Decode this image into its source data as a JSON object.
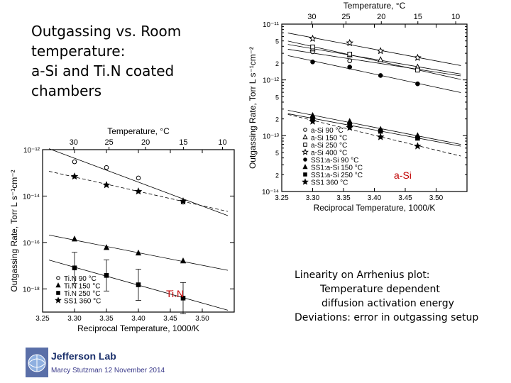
{
  "slide": {
    "title_lines": [
      "Outgassing vs. Room",
      "temperature:",
      "a-Si and Ti.N coated",
      "chambers"
    ],
    "notes": {
      "line1": "Linearity on Arrhenius plot:",
      "line2": "Temperature dependent",
      "line3": "diffusion  activation energy",
      "line4": "Deviations: error in outgassing setup"
    },
    "footer": {
      "brand": "Jefferson Lab",
      "author": "Marcy Stutzman 12 November 2014"
    }
  },
  "chart_data": [
    {
      "type": "scatter",
      "panel_label": "a-Si",
      "xlabel": "Reciprocal Temperature, 1000/K",
      "ylabel": "Outgassing Rate, Torr L s⁻¹cm⁻²",
      "top_axis_label": "Temperature, °C",
      "yscale": "log",
      "xlim": [
        3.25,
        3.55
      ],
      "ylim": [
        1e-14,
        1e-11
      ],
      "x_ticks": [
        "3.25",
        "3.30",
        "3.35",
        "3.40",
        "3.45",
        "3.50"
      ],
      "top_ticks": [
        "35",
        "30",
        "25",
        "20",
        "15",
        "10"
      ],
      "y_ticks": [
        "10⁻¹¹",
        "10⁻¹²",
        "10⁻¹³",
        "10⁻¹⁴"
      ],
      "y_minor_labels": [
        "5",
        "2",
        "5",
        "2",
        "5",
        "2"
      ],
      "legend": [
        "a-Si  90 °C",
        "a-Si 150 °C",
        "a-Si 250 °C",
        "a-Si 400 °C",
        "SS1:a-Si  90 °C",
        "SS1:a-Si 150 °C",
        "SS1:a-Si 250 °C",
        "SS1 360 °C"
      ],
      "series": [
        {
          "name": "a-Si  90 °C",
          "marker": "circle-open",
          "x": [
            3.3,
            3.36,
            3.47
          ],
          "y": [
            3.2e-12,
            2.2e-12,
            1.6e-12
          ]
        },
        {
          "name": "a-Si 150 °C",
          "marker": "triangle-open",
          "x": [
            3.3,
            3.36,
            3.41,
            3.47
          ],
          "y": [
            3.6e-12,
            2.8e-12,
            2.3e-12,
            1.7e-12
          ]
        },
        {
          "name": "a-Si 250 °C",
          "marker": "square-open",
          "x": [
            3.3,
            3.36,
            3.47
          ],
          "y": [
            3.9e-12,
            2.9e-12,
            1.5e-12
          ]
        },
        {
          "name": "a-Si 400 °C",
          "marker": "star-open",
          "x": [
            3.3,
            3.36,
            3.41,
            3.47
          ],
          "y": [
            5.5e-12,
            4.6e-12,
            3.3e-12,
            2.5e-12
          ]
        },
        {
          "name": "SS1:a-Si  90 °C",
          "marker": "circle",
          "x": [
            3.3,
            3.36,
            3.41,
            3.47
          ],
          "y": [
            2.1e-12,
            1.7e-12,
            1.2e-12,
            8.5e-13
          ]
        },
        {
          "name": "SS1:a-Si 150 °C",
          "marker": "triangle",
          "x": [
            3.3,
            3.36,
            3.41,
            3.47
          ],
          "y": [
            2.3e-13,
            1.8e-13,
            1.3e-13,
            1e-13
          ]
        },
        {
          "name": "SS1:a-Si 250 °C",
          "marker": "square",
          "x": [
            3.3,
            3.36,
            3.41,
            3.47
          ],
          "y": [
            2e-13,
            1.6e-13,
            1.2e-13,
            9e-14
          ]
        },
        {
          "name": "SS1 360 °C",
          "marker": "star",
          "x": [
            3.3,
            3.36,
            3.41,
            3.47
          ],
          "y": [
            1.8e-13,
            1.4e-13,
            9.5e-14,
            6.5e-14
          ]
        }
      ]
    },
    {
      "type": "scatter",
      "panel_label": "Ti.N",
      "xlabel": "Reciprocal Temperature, 1000/K",
      "ylabel": "Outgassing Rate, Torr L s⁻¹cm⁻²",
      "top_axis_label": "Temperature, °C",
      "yscale": "log",
      "xlim": [
        3.25,
        3.55
      ],
      "ylim": [
        1e-18,
        1e-11
      ],
      "x_ticks": [
        "3.25",
        "3.30",
        "3.35",
        "3.40",
        "3.45",
        "3.50"
      ],
      "top_ticks": [
        "35",
        "30",
        "25",
        "20",
        "15",
        "10"
      ],
      "y_ticks": [
        "10⁻¹²",
        "10⁻¹⁴",
        "10⁻¹⁶",
        "10⁻¹⁸"
      ],
      "legend": [
        "Ti.N  90 °C",
        "Ti.N  150 °C",
        "Ti.N  250 °C",
        "SS1 360 °C"
      ],
      "series": [
        {
          "name": "Ti.N  90 °C",
          "marker": "circle-open",
          "x": [
            3.3,
            3.35,
            3.4,
            3.47
          ],
          "y": [
            3e-12,
            1.7e-12,
            6e-13,
            5.5e-14
          ]
        },
        {
          "name": "Ti.N  150 °C",
          "marker": "triangle",
          "x": [
            3.3,
            3.35,
            3.4,
            3.47
          ],
          "y": [
            1.4e-15,
            6e-16,
            3.5e-16,
            1.6e-16
          ]
        },
        {
          "name": "Ti.N  250 °C",
          "marker": "square",
          "x": [
            3.3,
            3.35,
            3.4,
            3.47
          ],
          "y": [
            8e-17,
            3.8e-17,
            1.5e-17,
            4e-18
          ]
        },
        {
          "name": "SS1 360 °C",
          "marker": "star",
          "x": [
            3.3,
            3.35,
            3.4,
            3.47
          ],
          "y": [
            7e-13,
            3e-13,
            1.6e-13,
            6e-14
          ]
        }
      ]
    }
  ],
  "colors": {
    "panel_label": "#c00000",
    "brand": "#1a2f6b",
    "author": "#3a3a8a"
  }
}
